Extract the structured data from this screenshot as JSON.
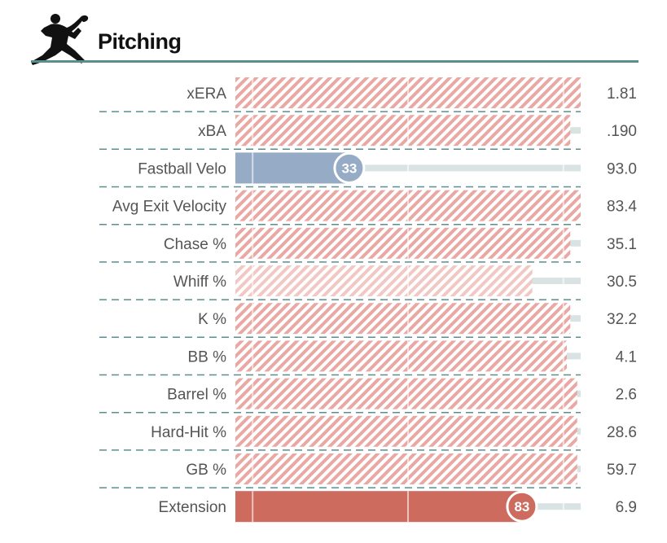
{
  "header": {
    "title": "Pitching",
    "icon": "pitcher-silhouette-icon",
    "rule_color": "#5a8f8f"
  },
  "colors": {
    "cold_strong": "#95abc6",
    "hot_strong": "#cc6b5e",
    "hatch_stripe": "#e9a8a3",
    "hatch_light_stripe": "#f1c8c3",
    "track": "#d9e3e3",
    "divider": "#5a8f8f"
  },
  "chart_data": {
    "type": "bar",
    "title": "Pitching",
    "xlim": [
      0,
      100
    ],
    "grid": false,
    "categories": [
      "xERA",
      "xBA",
      "Fastball Velo",
      "Avg Exit Velocity",
      "Chase %",
      "Whiff %",
      "K %",
      "BB %",
      "Barrel %",
      "Hard-Hit %",
      "GB %",
      "Extension"
    ],
    "series": [
      {
        "percentile": [
          100,
          97,
          33,
          100,
          97,
          86,
          97,
          96,
          99,
          99,
          99,
          83
        ],
        "percentile_labels": [
          "",
          "",
          "33",
          "",
          "",
          "",
          "",
          "",
          "",
          "",
          "",
          "83"
        ],
        "values": [
          "1.81",
          ".190",
          "93.0",
          "83.4",
          "35.1",
          "30.5",
          "32.2",
          "4.1",
          "2.6",
          "28.6",
          "59.7",
          "6.9"
        ],
        "styles": [
          "hatched",
          "hatched",
          "solid-cold",
          "hatched",
          "hatched",
          "hatched-light",
          "hatched",
          "hatched",
          "hatched",
          "hatched",
          "hatched",
          "solid-hot"
        ]
      }
    ]
  }
}
